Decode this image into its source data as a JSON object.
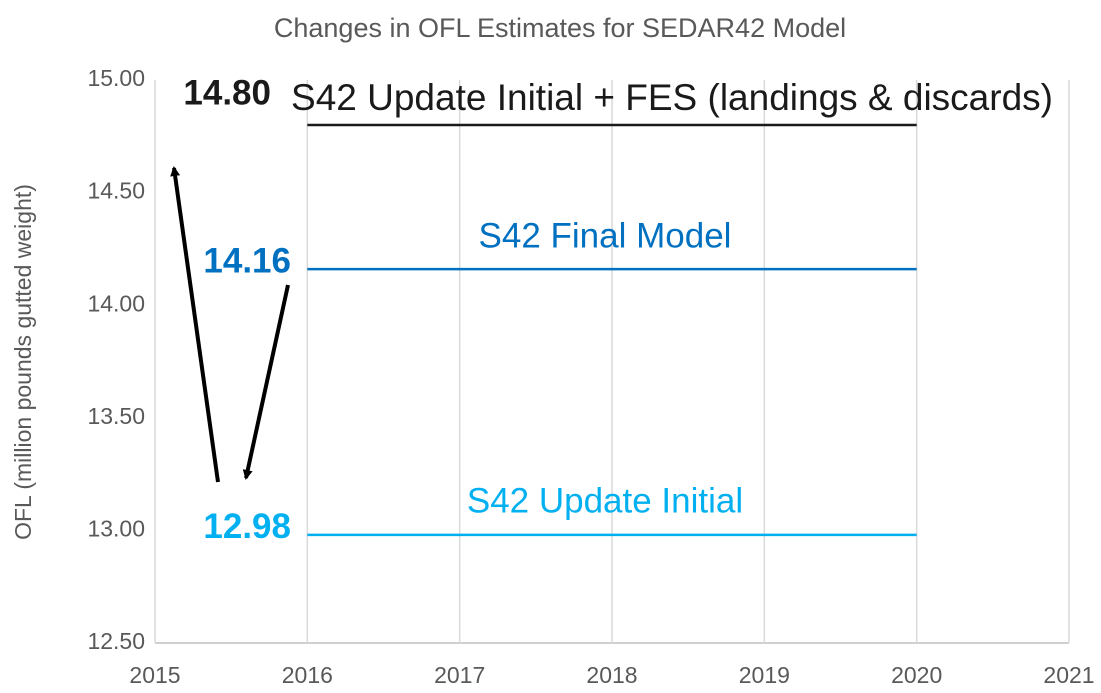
{
  "chart_data": {
    "type": "line",
    "title": "Changes in OFL Estimates for SEDAR42 Model",
    "ylabel": "OFL (million pounds gutted weight)",
    "x": [
      2016,
      2020
    ],
    "series": [
      {
        "name": "S42 Update Initial + FES (landings & discards)",
        "color": "#1a1a1a",
        "values": [
          14.8,
          14.8
        ],
        "value_labels": [
          "14.80",
          null
        ]
      },
      {
        "name": "S42 Final Model",
        "color": "#0070c0",
        "values": [
          14.16,
          14.16
        ],
        "value_labels": [
          "14.16",
          null
        ]
      },
      {
        "name": "S42 Update Initial",
        "color": "#00b0f0",
        "values": [
          12.98,
          12.98
        ],
        "value_labels": [
          "12.98",
          null
        ]
      }
    ],
    "xlim": [
      2015,
      2021
    ],
    "xticks": [
      2015,
      2016,
      2017,
      2018,
      2019,
      2020,
      2021
    ],
    "ylim": [
      12.5,
      15
    ],
    "yticks": [
      {
        "value": 12.5,
        "label": "12.50"
      },
      {
        "value": 13,
        "label": "13.00"
      },
      {
        "value": 13.5,
        "label": "13.50"
      },
      {
        "value": 14,
        "label": "14.00"
      },
      {
        "value": 14.5,
        "label": "14.50"
      },
      {
        "value": 15,
        "label": "15.00"
      }
    ],
    "grid": true
  }
}
